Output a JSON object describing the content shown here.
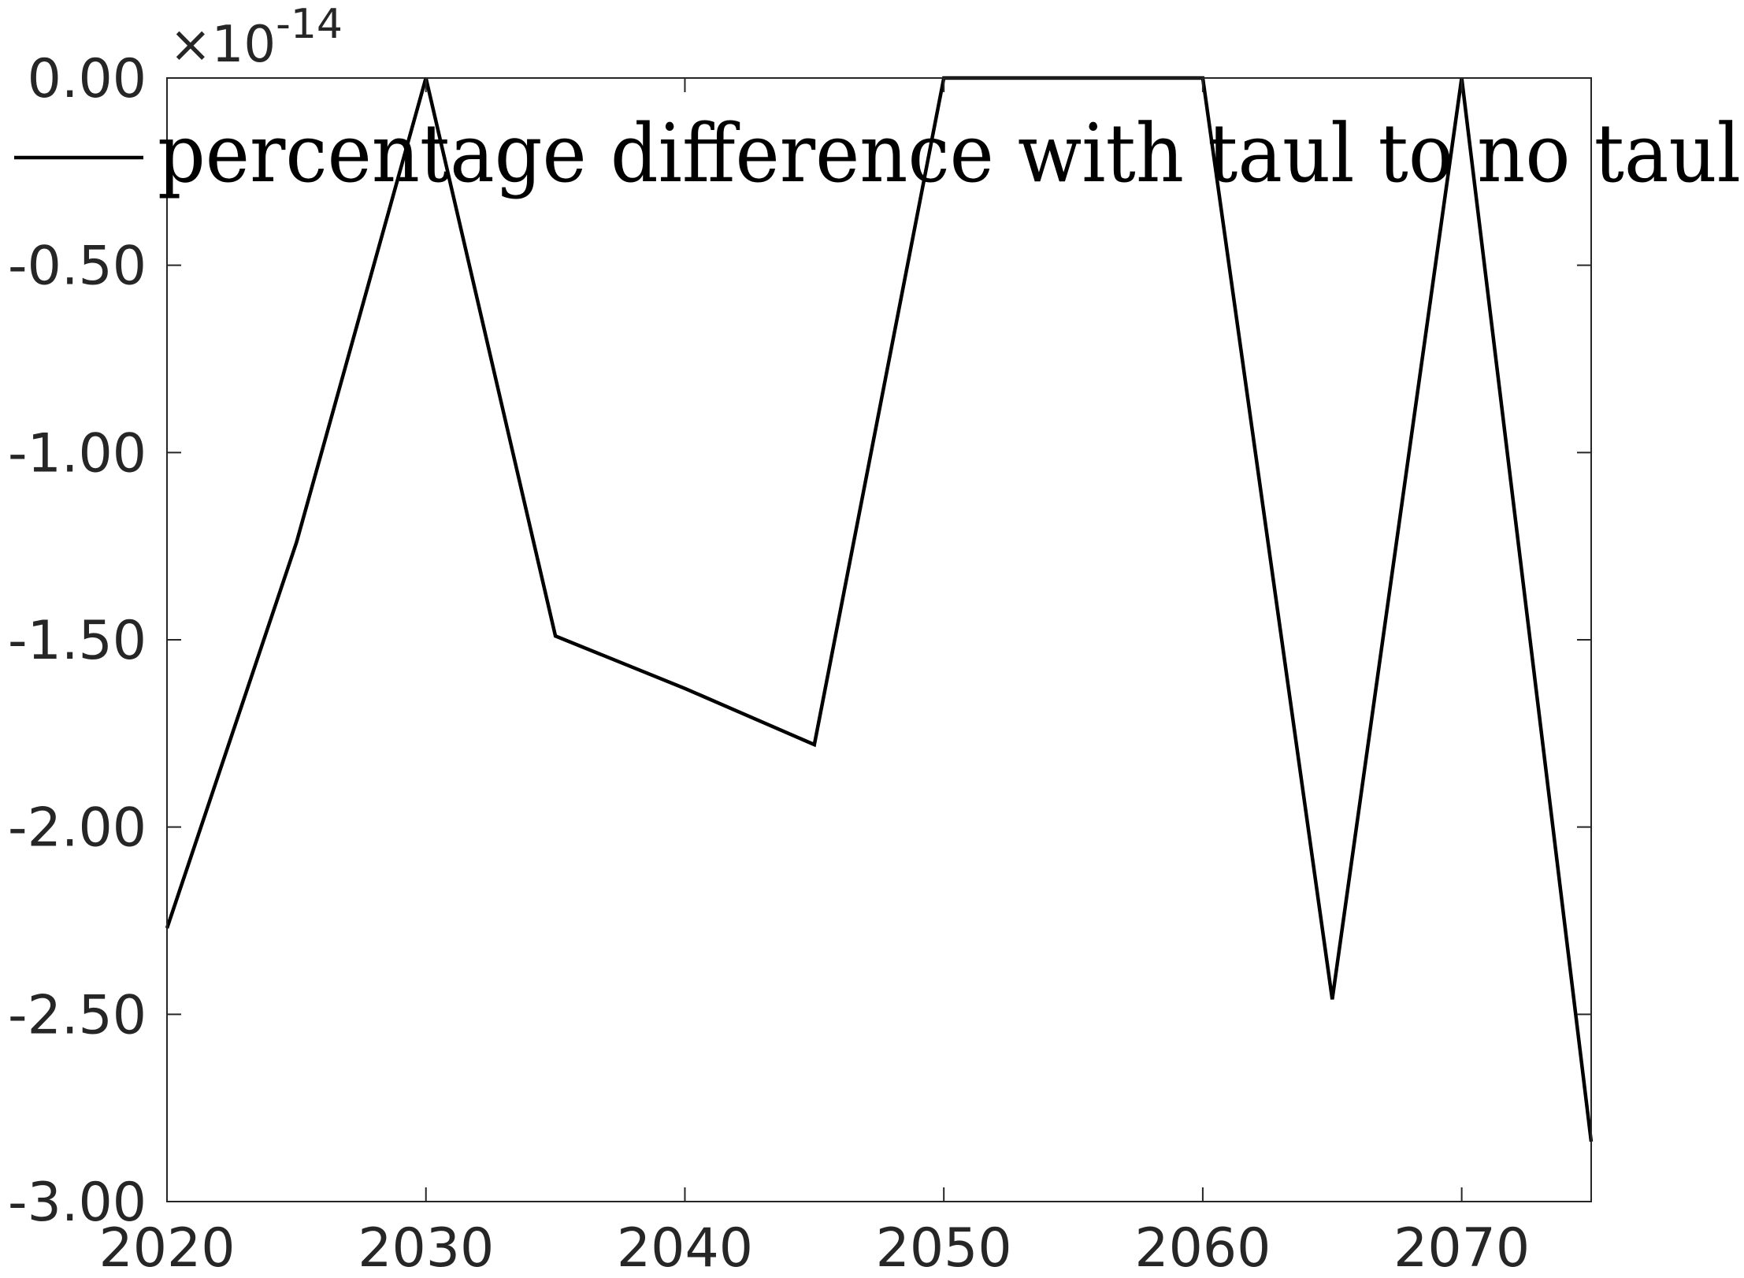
{
  "chart_data": {
    "type": "line",
    "title": "",
    "xlabel": "",
    "ylabel": "",
    "exponent_label": "×10",
    "exponent_power": "-14",
    "xlim": [
      2020,
      2075
    ],
    "ylim": [
      -3.0,
      0.0
    ],
    "x_ticks": [
      2020,
      2030,
      2040,
      2050,
      2060,
      2070
    ],
    "x_tick_labels": [
      "2020",
      "2030",
      "2040",
      "2050",
      "2060",
      "2070"
    ],
    "y_ticks": [
      0.0,
      -0.5,
      -1.0,
      -1.5,
      -2.0,
      -2.5,
      -3.0
    ],
    "y_tick_labels": [
      "0.00",
      "-0.50",
      "-1.00",
      "-1.50",
      "-2.00",
      "-2.50",
      "-3.00"
    ],
    "grid": false,
    "legend_position": "top",
    "series": [
      {
        "name": "percentage difference with taul to no taul",
        "color": "#000000",
        "x": [
          2020,
          2025,
          2030,
          2035,
          2040,
          2045,
          2050,
          2055,
          2060,
          2065,
          2070,
          2075
        ],
        "y": [
          -2.27,
          -1.24,
          0.0,
          -1.49,
          -1.63,
          -1.78,
          0.0,
          0.0,
          0.0,
          -2.46,
          0.0,
          -2.84
        ]
      }
    ]
  }
}
